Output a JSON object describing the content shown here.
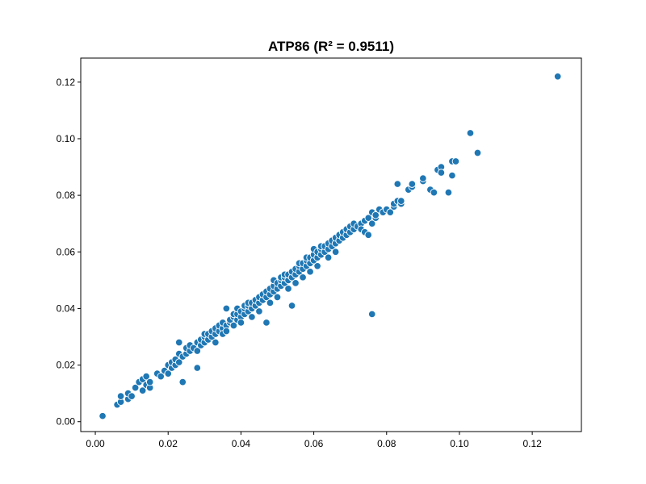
{
  "chart_data": {
    "type": "scatter",
    "title": "ATP86 (R² = 0.9511)",
    "xlabel": "",
    "ylabel": "",
    "xlim": [
      -0.004,
      0.1335
    ],
    "ylim": [
      -0.0035,
      0.1285
    ],
    "xticks": [
      "0.00",
      "0.02",
      "0.04",
      "0.06",
      "0.08",
      "0.10",
      "0.12"
    ],
    "yticks": [
      "0.00",
      "0.02",
      "0.04",
      "0.06",
      "0.08",
      "0.10",
      "0.12"
    ],
    "grid": false,
    "color": "#1f77b4",
    "points": [
      [
        0.002,
        0.002
      ],
      [
        0.006,
        0.006
      ],
      [
        0.007,
        0.007
      ],
      [
        0.007,
        0.009
      ],
      [
        0.009,
        0.008
      ],
      [
        0.009,
        0.01
      ],
      [
        0.01,
        0.009
      ],
      [
        0.011,
        0.012
      ],
      [
        0.012,
        0.014
      ],
      [
        0.013,
        0.011
      ],
      [
        0.013,
        0.015
      ],
      [
        0.014,
        0.013
      ],
      [
        0.014,
        0.016
      ],
      [
        0.015,
        0.012
      ],
      [
        0.015,
        0.014
      ],
      [
        0.017,
        0.017
      ],
      [
        0.018,
        0.016
      ],
      [
        0.019,
        0.018
      ],
      [
        0.02,
        0.02
      ],
      [
        0.02,
        0.017
      ],
      [
        0.021,
        0.019
      ],
      [
        0.021,
        0.021
      ],
      [
        0.022,
        0.02
      ],
      [
        0.022,
        0.022
      ],
      [
        0.023,
        0.021
      ],
      [
        0.023,
        0.024
      ],
      [
        0.023,
        0.028
      ],
      [
        0.024,
        0.014
      ],
      [
        0.024,
        0.023
      ],
      [
        0.025,
        0.024
      ],
      [
        0.025,
        0.026
      ],
      [
        0.026,
        0.025
      ],
      [
        0.026,
        0.027
      ],
      [
        0.027,
        0.026
      ],
      [
        0.028,
        0.019
      ],
      [
        0.028,
        0.025
      ],
      [
        0.028,
        0.028
      ],
      [
        0.029,
        0.027
      ],
      [
        0.029,
        0.029
      ],
      [
        0.03,
        0.028
      ],
      [
        0.03,
        0.03
      ],
      [
        0.03,
        0.031
      ],
      [
        0.031,
        0.029
      ],
      [
        0.031,
        0.031
      ],
      [
        0.032,
        0.03
      ],
      [
        0.032,
        0.032
      ],
      [
        0.033,
        0.031
      ],
      [
        0.033,
        0.033
      ],
      [
        0.033,
        0.028
      ],
      [
        0.034,
        0.032
      ],
      [
        0.034,
        0.034
      ],
      [
        0.035,
        0.033
      ],
      [
        0.035,
        0.035
      ],
      [
        0.035,
        0.031
      ],
      [
        0.036,
        0.034
      ],
      [
        0.036,
        0.04
      ],
      [
        0.036,
        0.032
      ],
      [
        0.037,
        0.035
      ],
      [
        0.037,
        0.036
      ],
      [
        0.038,
        0.034
      ],
      [
        0.038,
        0.037
      ],
      [
        0.038,
        0.038
      ],
      [
        0.039,
        0.036
      ],
      [
        0.039,
        0.038
      ],
      [
        0.039,
        0.04
      ],
      [
        0.04,
        0.037
      ],
      [
        0.04,
        0.039
      ],
      [
        0.04,
        0.035
      ],
      [
        0.041,
        0.038
      ],
      [
        0.041,
        0.04
      ],
      [
        0.041,
        0.041
      ],
      [
        0.042,
        0.039
      ],
      [
        0.042,
        0.041
      ],
      [
        0.042,
        0.042
      ],
      [
        0.043,
        0.04
      ],
      [
        0.043,
        0.042
      ],
      [
        0.043,
        0.037
      ],
      [
        0.044,
        0.041
      ],
      [
        0.044,
        0.043
      ],
      [
        0.045,
        0.042
      ],
      [
        0.045,
        0.044
      ],
      [
        0.045,
        0.039
      ],
      [
        0.046,
        0.043
      ],
      [
        0.046,
        0.045
      ],
      [
        0.047,
        0.044
      ],
      [
        0.047,
        0.035
      ],
      [
        0.047,
        0.046
      ],
      [
        0.048,
        0.045
      ],
      [
        0.048,
        0.047
      ],
      [
        0.048,
        0.042
      ],
      [
        0.049,
        0.046
      ],
      [
        0.049,
        0.048
      ],
      [
        0.049,
        0.05
      ],
      [
        0.05,
        0.047
      ],
      [
        0.05,
        0.049
      ],
      [
        0.05,
        0.044
      ],
      [
        0.051,
        0.048
      ],
      [
        0.051,
        0.05
      ],
      [
        0.051,
        0.051
      ],
      [
        0.052,
        0.049
      ],
      [
        0.052,
        0.051
      ],
      [
        0.052,
        0.052
      ],
      [
        0.053,
        0.05
      ],
      [
        0.053,
        0.052
      ],
      [
        0.053,
        0.047
      ],
      [
        0.054,
        0.051
      ],
      [
        0.054,
        0.053
      ],
      [
        0.054,
        0.041
      ],
      [
        0.055,
        0.052
      ],
      [
        0.055,
        0.054
      ],
      [
        0.055,
        0.049
      ],
      [
        0.056,
        0.053
      ],
      [
        0.056,
        0.055
      ],
      [
        0.056,
        0.056
      ],
      [
        0.057,
        0.054
      ],
      [
        0.057,
        0.056
      ],
      [
        0.057,
        0.051
      ],
      [
        0.058,
        0.055
      ],
      [
        0.058,
        0.057
      ],
      [
        0.058,
        0.058
      ],
      [
        0.059,
        0.056
      ],
      [
        0.059,
        0.058
      ],
      [
        0.059,
        0.053
      ],
      [
        0.06,
        0.057
      ],
      [
        0.06,
        0.059
      ],
      [
        0.06,
        0.061
      ],
      [
        0.061,
        0.058
      ],
      [
        0.061,
        0.06
      ],
      [
        0.061,
        0.055
      ],
      [
        0.062,
        0.059
      ],
      [
        0.062,
        0.061
      ],
      [
        0.062,
        0.062
      ],
      [
        0.063,
        0.06
      ],
      [
        0.063,
        0.062
      ],
      [
        0.064,
        0.061
      ],
      [
        0.064,
        0.063
      ],
      [
        0.064,
        0.058
      ],
      [
        0.065,
        0.062
      ],
      [
        0.065,
        0.064
      ],
      [
        0.066,
        0.063
      ],
      [
        0.066,
        0.065
      ],
      [
        0.066,
        0.06
      ],
      [
        0.067,
        0.064
      ],
      [
        0.067,
        0.066
      ],
      [
        0.068,
        0.065
      ],
      [
        0.068,
        0.067
      ],
      [
        0.069,
        0.066
      ],
      [
        0.069,
        0.068
      ],
      [
        0.07,
        0.067
      ],
      [
        0.07,
        0.069
      ],
      [
        0.071,
        0.068
      ],
      [
        0.071,
        0.07
      ],
      [
        0.072,
        0.069
      ],
      [
        0.073,
        0.07
      ],
      [
        0.073,
        0.068
      ],
      [
        0.074,
        0.071
      ],
      [
        0.074,
        0.067
      ],
      [
        0.075,
        0.072
      ],
      [
        0.075,
        0.066
      ],
      [
        0.076,
        0.074
      ],
      [
        0.076,
        0.07
      ],
      [
        0.076,
        0.038
      ],
      [
        0.077,
        0.072
      ],
      [
        0.077,
        0.073
      ],
      [
        0.078,
        0.075
      ],
      [
        0.079,
        0.074
      ],
      [
        0.08,
        0.075
      ],
      [
        0.081,
        0.074
      ],
      [
        0.082,
        0.076
      ],
      [
        0.082,
        0.077
      ],
      [
        0.083,
        0.078
      ],
      [
        0.083,
        0.084
      ],
      [
        0.084,
        0.077
      ],
      [
        0.084,
        0.078
      ],
      [
        0.086,
        0.082
      ],
      [
        0.087,
        0.083
      ],
      [
        0.087,
        0.084
      ],
      [
        0.09,
        0.085
      ],
      [
        0.09,
        0.086
      ],
      [
        0.092,
        0.082
      ],
      [
        0.093,
        0.081
      ],
      [
        0.094,
        0.089
      ],
      [
        0.095,
        0.09
      ],
      [
        0.095,
        0.088
      ],
      [
        0.097,
        0.081
      ],
      [
        0.098,
        0.087
      ],
      [
        0.098,
        0.092
      ],
      [
        0.099,
        0.092
      ],
      [
        0.103,
        0.102
      ],
      [
        0.105,
        0.095
      ],
      [
        0.127,
        0.122
      ]
    ]
  }
}
